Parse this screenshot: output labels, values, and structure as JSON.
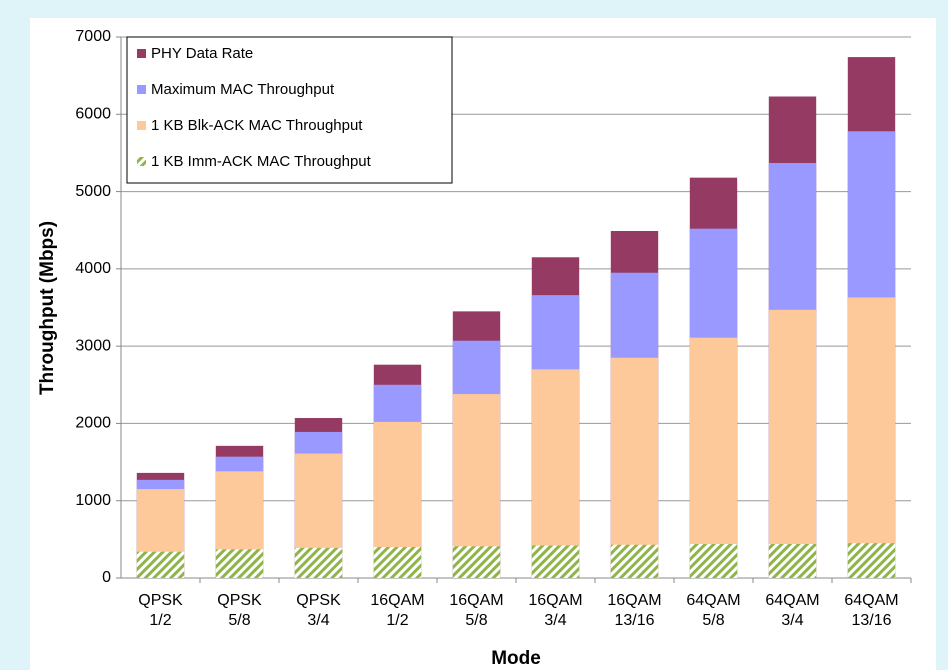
{
  "chart_data": {
    "type": "bar",
    "overlay": true,
    "x_label": "Mode",
    "y_label": "Throughput (Mbps)",
    "categories": [
      "QPSK\n1/2",
      "QPSK\n5/8",
      "QPSK\n3/4",
      "16QAM\n1/2",
      "16QAM\n5/8",
      "16QAM\n3/4",
      "16QAM\n13/16",
      "64QAM\n5/8",
      "64QAM\n3/4",
      "64QAM\n13/16"
    ],
    "series": [
      {
        "name": "PHY Data Rate",
        "color": "#953a62",
        "values": [
          1360,
          1710,
          2070,
          2760,
          3450,
          4150,
          4490,
          5180,
          6230,
          6740
        ]
      },
      {
        "name": "Maximum MAC Throughput",
        "color": "#9999ff",
        "values": [
          1270,
          1570,
          1890,
          2500,
          3070,
          3660,
          3950,
          4520,
          5370,
          5780
        ]
      },
      {
        "name": "1 KB Blk-ACK MAC Throughput",
        "color": "#fdc99a",
        "values": [
          1150,
          1380,
          1610,
          2020,
          2380,
          2700,
          2850,
          3110,
          3470,
          3630
        ]
      },
      {
        "name": "1 KB Imm-ACK MAC Throughput",
        "color": "#8fb44a",
        "pattern": "hatch",
        "values": [
          340,
          370,
          390,
          400,
          410,
          420,
          430,
          440,
          440,
          450
        ]
      }
    ],
    "ylim": [
      0,
      7000
    ],
    "yticks": [
      0,
      1000,
      2000,
      3000,
      4000,
      5000,
      6000,
      7000
    ],
    "grid": true,
    "legend": "upper left"
  }
}
